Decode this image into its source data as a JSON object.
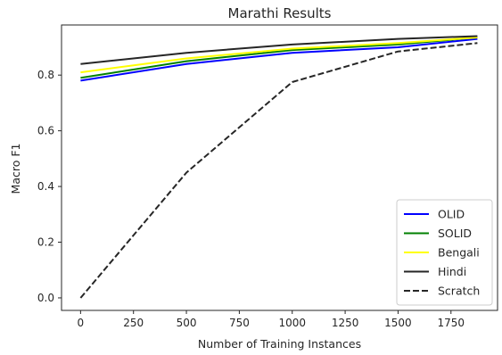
{
  "chart_data": {
    "type": "line",
    "title": "Marathi Results",
    "xlabel": "Number of Training Instances",
    "ylabel": "Macro F1",
    "xlim": [
      -90,
      1970
    ],
    "ylim": [
      -0.045,
      0.98
    ],
    "xticks": [
      0,
      250,
      500,
      750,
      1000,
      1250,
      1500,
      1750
    ],
    "yticks": [
      0.0,
      0.2,
      0.4,
      0.6,
      0.8
    ],
    "xtick_labels": [
      "0",
      "250",
      "500",
      "750",
      "1000",
      "1250",
      "1500",
      "1750"
    ],
    "ytick_labels": [
      "0.0",
      "0.2",
      "0.4",
      "0.6",
      "0.8"
    ],
    "legend_position": "lower-right",
    "grid": false,
    "series": [
      {
        "name": "OLID",
        "color": "#0000ff",
        "style": "solid",
        "x": [
          0,
          500,
          1000,
          1500,
          1875
        ],
        "y": [
          0.78,
          0.84,
          0.88,
          0.9,
          0.93
        ]
      },
      {
        "name": "SOLID",
        "color": "#008000",
        "style": "solid",
        "x": [
          0,
          500,
          1000,
          1500,
          1875
        ],
        "y": [
          0.79,
          0.85,
          0.89,
          0.91,
          0.935
        ]
      },
      {
        "name": "Bengali",
        "color": "#ffff00",
        "style": "solid",
        "x": [
          0,
          500,
          1000,
          1500,
          1875
        ],
        "y": [
          0.81,
          0.86,
          0.895,
          0.915,
          0.935
        ]
      },
      {
        "name": "Hindi",
        "color": "#262626",
        "style": "solid",
        "x": [
          0,
          500,
          1000,
          1500,
          1875
        ],
        "y": [
          0.84,
          0.88,
          0.91,
          0.93,
          0.94
        ]
      },
      {
        "name": "Scratch",
        "color": "#262626",
        "style": "dashed",
        "x": [
          0,
          500,
          1000,
          1500,
          1875
        ],
        "y": [
          0.0,
          0.45,
          0.775,
          0.885,
          0.915
        ]
      }
    ]
  }
}
